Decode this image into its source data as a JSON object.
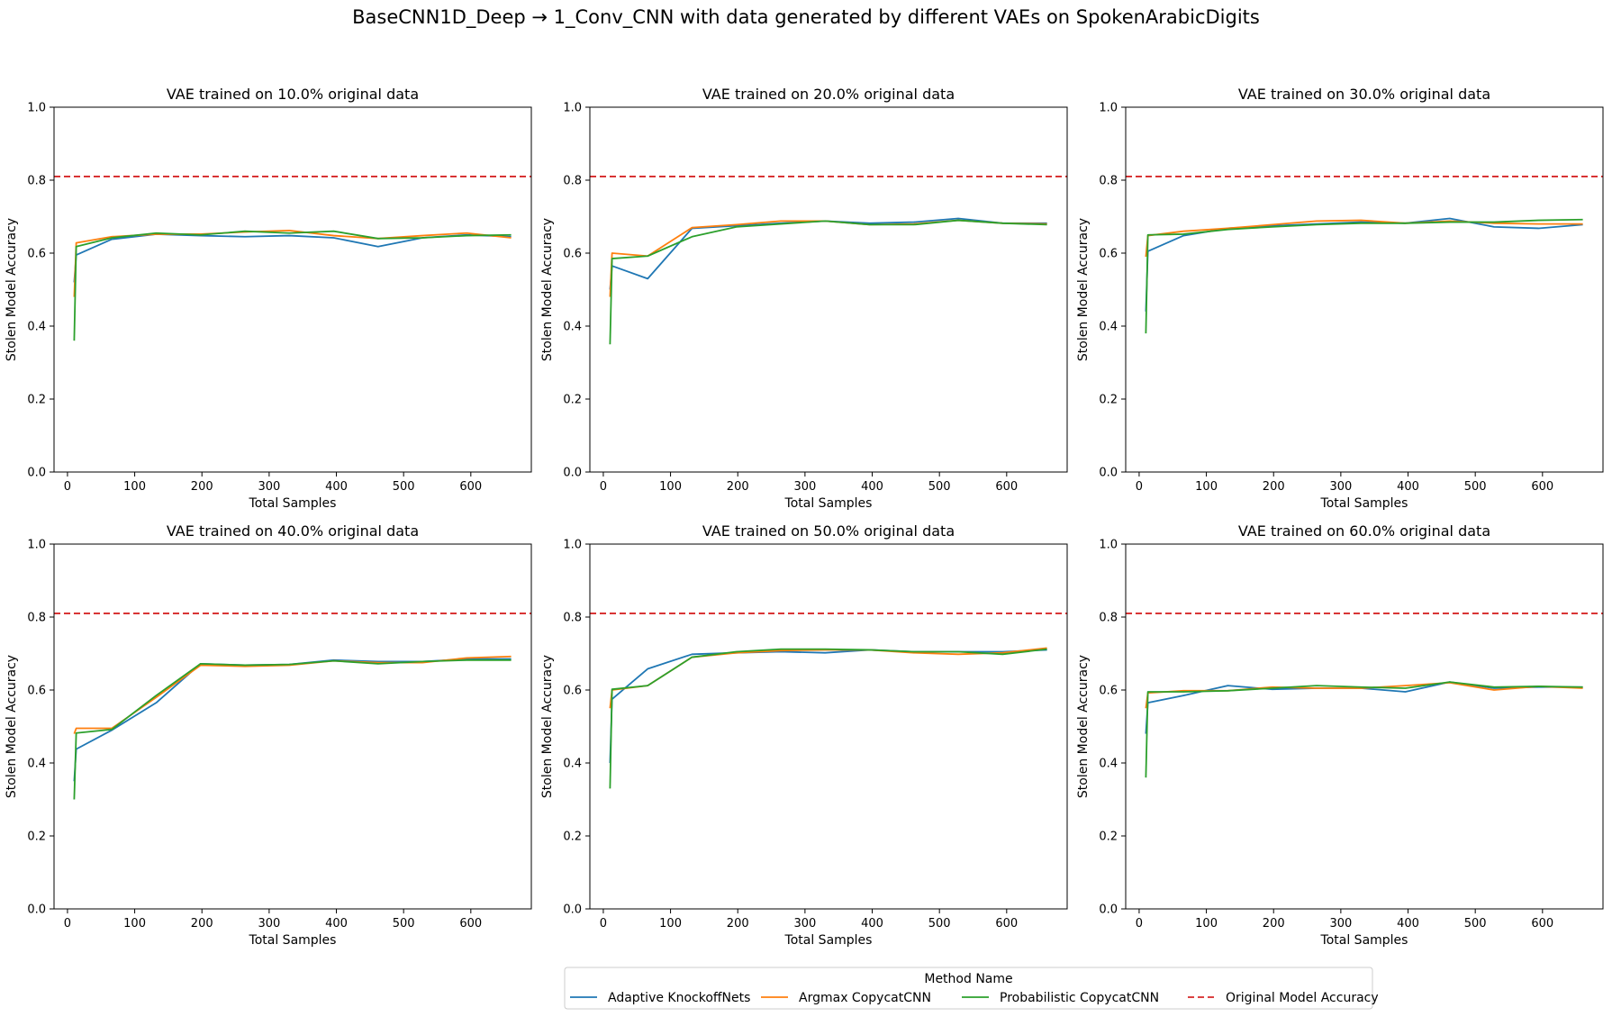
{
  "figure": {
    "suptitle": "BaseCNN1D_Deep → 1_Conv_CNN with data generated by different VAEs on SpokenArabicDigits"
  },
  "legend": {
    "title": "Method Name",
    "placement": "bottom-center",
    "entries": [
      {
        "label": "Adaptive KnockoffNets",
        "color": "#1f77b4",
        "style": "solid"
      },
      {
        "label": "Argmax CopycatCNN",
        "color": "#ff7f0e",
        "style": "solid"
      },
      {
        "label": "Probabilistic CopycatCNN",
        "color": "#2ca02c",
        "style": "solid"
      },
      {
        "label": "Original Model Accuracy",
        "color": "#d62728",
        "style": "dashed"
      }
    ]
  },
  "chart_data": [
    {
      "type": "line",
      "title": "VAE trained on 10.0% original data",
      "xlabel": "Total Samples",
      "ylabel": "Stolen Model Accuracy",
      "xlim": [
        -20,
        690
      ],
      "ylim": [
        0,
        1.0
      ],
      "xticks": [
        0,
        100,
        200,
        300,
        400,
        500,
        600
      ],
      "yticks": [
        0.0,
        0.2,
        0.4,
        0.6,
        0.8,
        1.0
      ],
      "grid": false,
      "reference_line": {
        "name": "Original Model Accuracy",
        "y": 0.81
      },
      "series": [
        {
          "name": "Adaptive KnockoffNets",
          "color": "#1f77b4",
          "x": [
            10,
            13,
            66,
            132,
            198,
            264,
            330,
            396,
            462,
            528,
            594,
            660
          ],
          "y": [
            0.52,
            0.595,
            0.638,
            0.652,
            0.648,
            0.645,
            0.648,
            0.642,
            0.618,
            0.642,
            0.65,
            0.645
          ]
        },
        {
          "name": "Argmax CopycatCNN",
          "color": "#ff7f0e",
          "x": [
            10,
            13,
            66,
            132,
            198,
            264,
            330,
            396,
            462,
            528,
            594,
            660
          ],
          "y": [
            0.48,
            0.628,
            0.645,
            0.652,
            0.652,
            0.658,
            0.662,
            0.648,
            0.64,
            0.648,
            0.655,
            0.642
          ]
        },
        {
          "name": "Probabilistic CopycatCNN",
          "color": "#2ca02c",
          "x": [
            10,
            13,
            66,
            132,
            198,
            264,
            330,
            396,
            462,
            528,
            594,
            660
          ],
          "y": [
            0.36,
            0.618,
            0.642,
            0.655,
            0.65,
            0.66,
            0.655,
            0.66,
            0.64,
            0.642,
            0.648,
            0.65
          ]
        }
      ]
    },
    {
      "type": "line",
      "title": "VAE trained on 20.0% original data",
      "xlabel": "Total Samples",
      "ylabel": "Stolen Model Accuracy",
      "xlim": [
        -20,
        690
      ],
      "ylim": [
        0,
        1.0
      ],
      "xticks": [
        0,
        100,
        200,
        300,
        400,
        500,
        600
      ],
      "yticks": [
        0.0,
        0.2,
        0.4,
        0.6,
        0.8,
        1.0
      ],
      "grid": false,
      "reference_line": {
        "name": "Original Model Accuracy",
        "y": 0.81
      },
      "series": [
        {
          "name": "Adaptive KnockoffNets",
          "color": "#1f77b4",
          "x": [
            10,
            13,
            66,
            132,
            198,
            264,
            330,
            396,
            462,
            528,
            594,
            660
          ],
          "y": [
            0.5,
            0.565,
            0.53,
            0.668,
            0.675,
            0.682,
            0.688,
            0.682,
            0.685,
            0.695,
            0.682,
            0.682
          ]
        },
        {
          "name": "Argmax CopycatCNN",
          "color": "#ff7f0e",
          "x": [
            10,
            13,
            66,
            132,
            198,
            264,
            330,
            396,
            462,
            528,
            594,
            660
          ],
          "y": [
            0.48,
            0.6,
            0.592,
            0.67,
            0.678,
            0.688,
            0.688,
            0.678,
            0.68,
            0.69,
            0.682,
            0.68
          ]
        },
        {
          "name": "Probabilistic CopycatCNN",
          "color": "#2ca02c",
          "x": [
            10,
            13,
            66,
            132,
            198,
            264,
            330,
            396,
            462,
            528,
            594,
            660
          ],
          "y": [
            0.35,
            0.585,
            0.592,
            0.645,
            0.672,
            0.68,
            0.688,
            0.678,
            0.678,
            0.69,
            0.682,
            0.678
          ]
        }
      ]
    },
    {
      "type": "line",
      "title": "VAE trained on 30.0% original data",
      "xlabel": "Total Samples",
      "ylabel": "Stolen Model Accuracy",
      "xlim": [
        -20,
        690
      ],
      "ylim": [
        0,
        1.0
      ],
      "xticks": [
        0,
        100,
        200,
        300,
        400,
        500,
        600
      ],
      "yticks": [
        0.0,
        0.2,
        0.4,
        0.6,
        0.8,
        1.0
      ],
      "grid": false,
      "reference_line": {
        "name": "Original Model Accuracy",
        "y": 0.81
      },
      "series": [
        {
          "name": "Adaptive KnockoffNets",
          "color": "#1f77b4",
          "x": [
            10,
            13,
            66,
            132,
            198,
            264,
            330,
            396,
            462,
            528,
            594,
            660
          ],
          "y": [
            0.44,
            0.605,
            0.648,
            0.668,
            0.675,
            0.68,
            0.685,
            0.682,
            0.695,
            0.672,
            0.668,
            0.678
          ]
        },
        {
          "name": "Argmax CopycatCNN",
          "color": "#ff7f0e",
          "x": [
            10,
            13,
            66,
            132,
            198,
            264,
            330,
            396,
            462,
            528,
            594,
            660
          ],
          "y": [
            0.59,
            0.648,
            0.66,
            0.668,
            0.678,
            0.688,
            0.69,
            0.682,
            0.688,
            0.682,
            0.68,
            0.68
          ]
        },
        {
          "name": "Probabilistic CopycatCNN",
          "color": "#2ca02c",
          "x": [
            10,
            13,
            66,
            132,
            198,
            264,
            330,
            396,
            462,
            528,
            594,
            660
          ],
          "y": [
            0.38,
            0.65,
            0.652,
            0.665,
            0.672,
            0.678,
            0.682,
            0.682,
            0.685,
            0.685,
            0.69,
            0.692
          ]
        }
      ]
    },
    {
      "type": "line",
      "title": "VAE trained on 40.0% original data",
      "xlabel": "Total Samples",
      "ylabel": "Stolen Model Accuracy",
      "xlim": [
        -20,
        690
      ],
      "ylim": [
        0,
        1.0
      ],
      "xticks": [
        0,
        100,
        200,
        300,
        400,
        500,
        600
      ],
      "yticks": [
        0.0,
        0.2,
        0.4,
        0.6,
        0.8,
        1.0
      ],
      "grid": false,
      "reference_line": {
        "name": "Original Model Accuracy",
        "y": 0.81
      },
      "series": [
        {
          "name": "Adaptive KnockoffNets",
          "color": "#1f77b4",
          "x": [
            10,
            13,
            66,
            132,
            198,
            264,
            330,
            396,
            462,
            528,
            594,
            660
          ],
          "y": [
            0.35,
            0.438,
            0.49,
            0.565,
            0.672,
            0.668,
            0.67,
            0.682,
            0.678,
            0.678,
            0.685,
            0.685
          ]
        },
        {
          "name": "Argmax CopycatCNN",
          "color": "#ff7f0e",
          "x": [
            10,
            13,
            66,
            132,
            198,
            264,
            330,
            396,
            462,
            528,
            594,
            660
          ],
          "y": [
            0.48,
            0.495,
            0.495,
            0.58,
            0.668,
            0.665,
            0.668,
            0.68,
            0.675,
            0.675,
            0.688,
            0.692
          ]
        },
        {
          "name": "Probabilistic CopycatCNN",
          "color": "#2ca02c",
          "x": [
            10,
            13,
            66,
            132,
            198,
            264,
            330,
            396,
            462,
            528,
            594,
            660
          ],
          "y": [
            0.3,
            0.482,
            0.492,
            0.585,
            0.672,
            0.668,
            0.67,
            0.68,
            0.672,
            0.678,
            0.682,
            0.682
          ]
        }
      ]
    },
    {
      "type": "line",
      "title": "VAE trained on 50.0% original data",
      "xlabel": "Total Samples",
      "ylabel": "Stolen Model Accuracy",
      "xlim": [
        -20,
        690
      ],
      "ylim": [
        0,
        1.0
      ],
      "xticks": [
        0,
        100,
        200,
        300,
        400,
        500,
        600
      ],
      "yticks": [
        0.0,
        0.2,
        0.4,
        0.6,
        0.8,
        1.0
      ],
      "grid": false,
      "reference_line": {
        "name": "Original Model Accuracy",
        "y": 0.81
      },
      "series": [
        {
          "name": "Adaptive KnockoffNets",
          "color": "#1f77b4",
          "x": [
            10,
            13,
            66,
            132,
            198,
            264,
            330,
            396,
            462,
            528,
            594,
            660
          ],
          "y": [
            0.4,
            0.575,
            0.658,
            0.698,
            0.702,
            0.705,
            0.702,
            0.71,
            0.705,
            0.705,
            0.705,
            0.71
          ]
        },
        {
          "name": "Argmax CopycatCNN",
          "color": "#ff7f0e",
          "x": [
            10,
            13,
            66,
            132,
            198,
            264,
            330,
            396,
            462,
            528,
            594,
            660
          ],
          "y": [
            0.55,
            0.6,
            0.612,
            0.69,
            0.702,
            0.708,
            0.71,
            0.71,
            0.702,
            0.698,
            0.702,
            0.715
          ]
        },
        {
          "name": "Probabilistic CopycatCNN",
          "color": "#2ca02c",
          "x": [
            10,
            13,
            66,
            132,
            198,
            264,
            330,
            396,
            462,
            528,
            594,
            660
          ],
          "y": [
            0.33,
            0.602,
            0.612,
            0.69,
            0.705,
            0.712,
            0.712,
            0.71,
            0.705,
            0.705,
            0.698,
            0.712
          ]
        }
      ]
    },
    {
      "type": "line",
      "title": "VAE trained on 60.0% original data",
      "xlabel": "Total Samples",
      "ylabel": "Stolen Model Accuracy",
      "xlim": [
        -20,
        690
      ],
      "ylim": [
        0,
        1.0
      ],
      "xticks": [
        0,
        100,
        200,
        300,
        400,
        500,
        600
      ],
      "yticks": [
        0.0,
        0.2,
        0.4,
        0.6,
        0.8,
        1.0
      ],
      "grid": false,
      "reference_line": {
        "name": "Original Model Accuracy",
        "y": 0.81
      },
      "series": [
        {
          "name": "Adaptive KnockoffNets",
          "color": "#1f77b4",
          "x": [
            10,
            13,
            66,
            132,
            198,
            264,
            330,
            396,
            462,
            528,
            594,
            660
          ],
          "y": [
            0.48,
            0.565,
            0.585,
            0.612,
            0.602,
            0.605,
            0.605,
            0.595,
            0.622,
            0.605,
            0.608,
            0.608
          ]
        },
        {
          "name": "Argmax CopycatCNN",
          "color": "#ff7f0e",
          "x": [
            10,
            13,
            66,
            132,
            198,
            264,
            330,
            396,
            462,
            528,
            594,
            660
          ],
          "y": [
            0.55,
            0.592,
            0.598,
            0.598,
            0.608,
            0.605,
            0.605,
            0.612,
            0.62,
            0.6,
            0.61,
            0.605
          ]
        },
        {
          "name": "Probabilistic CopycatCNN",
          "color": "#2ca02c",
          "x": [
            10,
            13,
            66,
            132,
            198,
            264,
            330,
            396,
            462,
            528,
            594,
            660
          ],
          "y": [
            0.36,
            0.595,
            0.595,
            0.598,
            0.605,
            0.612,
            0.608,
            0.605,
            0.622,
            0.608,
            0.61,
            0.608
          ]
        }
      ]
    }
  ]
}
